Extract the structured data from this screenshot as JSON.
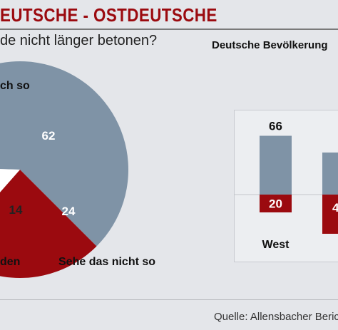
{
  "header": {
    "title": "EUTSCHE - OSTDEUTSCHE",
    "question": "de nicht länger betonen?"
  },
  "panel": {
    "title": "Deutsche Bevölkerung"
  },
  "footer": {
    "source": "Quelle: Allensbacher Beric"
  },
  "colors": {
    "accent": "#9b0a0f",
    "gray_blue": "#7f93a6",
    "white": "#ffffff",
    "background": "#e4e6ea"
  },
  "chart_data": [
    {
      "type": "pie",
      "slices": [
        {
          "label": "ch so",
          "value": 62,
          "color": "#7f93a6"
        },
        {
          "label": "Sehe das nicht so",
          "value": 24,
          "color": "#9b0a0f"
        },
        {
          "label": "den",
          "value": 14,
          "color": "#ffffff"
        }
      ]
    },
    {
      "type": "bar",
      "title": "Deutsche Bevölkerung",
      "categories": [
        "West"
      ],
      "series": [
        {
          "values": [
            66
          ],
          "color": "#7f93a6"
        },
        {
          "values": [
            20
          ],
          "color": "#9b0a0f"
        }
      ],
      "clipped_next_bar": {
        "lower_label": "4"
      }
    }
  ]
}
